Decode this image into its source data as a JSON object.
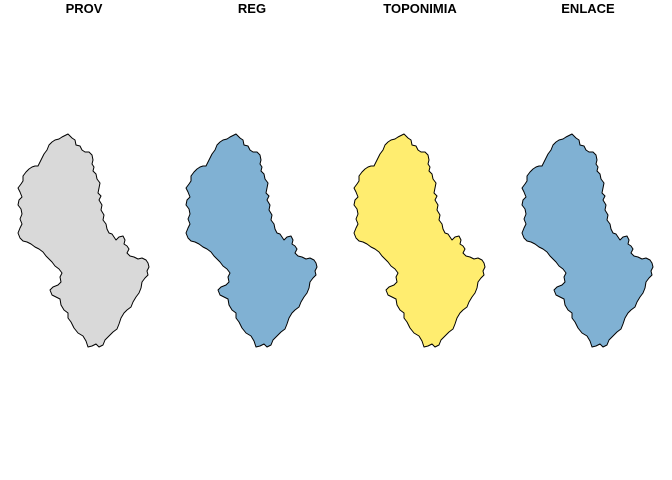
{
  "panels": [
    {
      "title": "PROV",
      "fill": "#d9d9d9"
    },
    {
      "title": "REG",
      "fill": "#80b1d3"
    },
    {
      "title": "TOPONIMIA",
      "fill": "#ffed6f"
    },
    {
      "title": "ENLACE",
      "fill": "#80b1d3"
    }
  ]
}
